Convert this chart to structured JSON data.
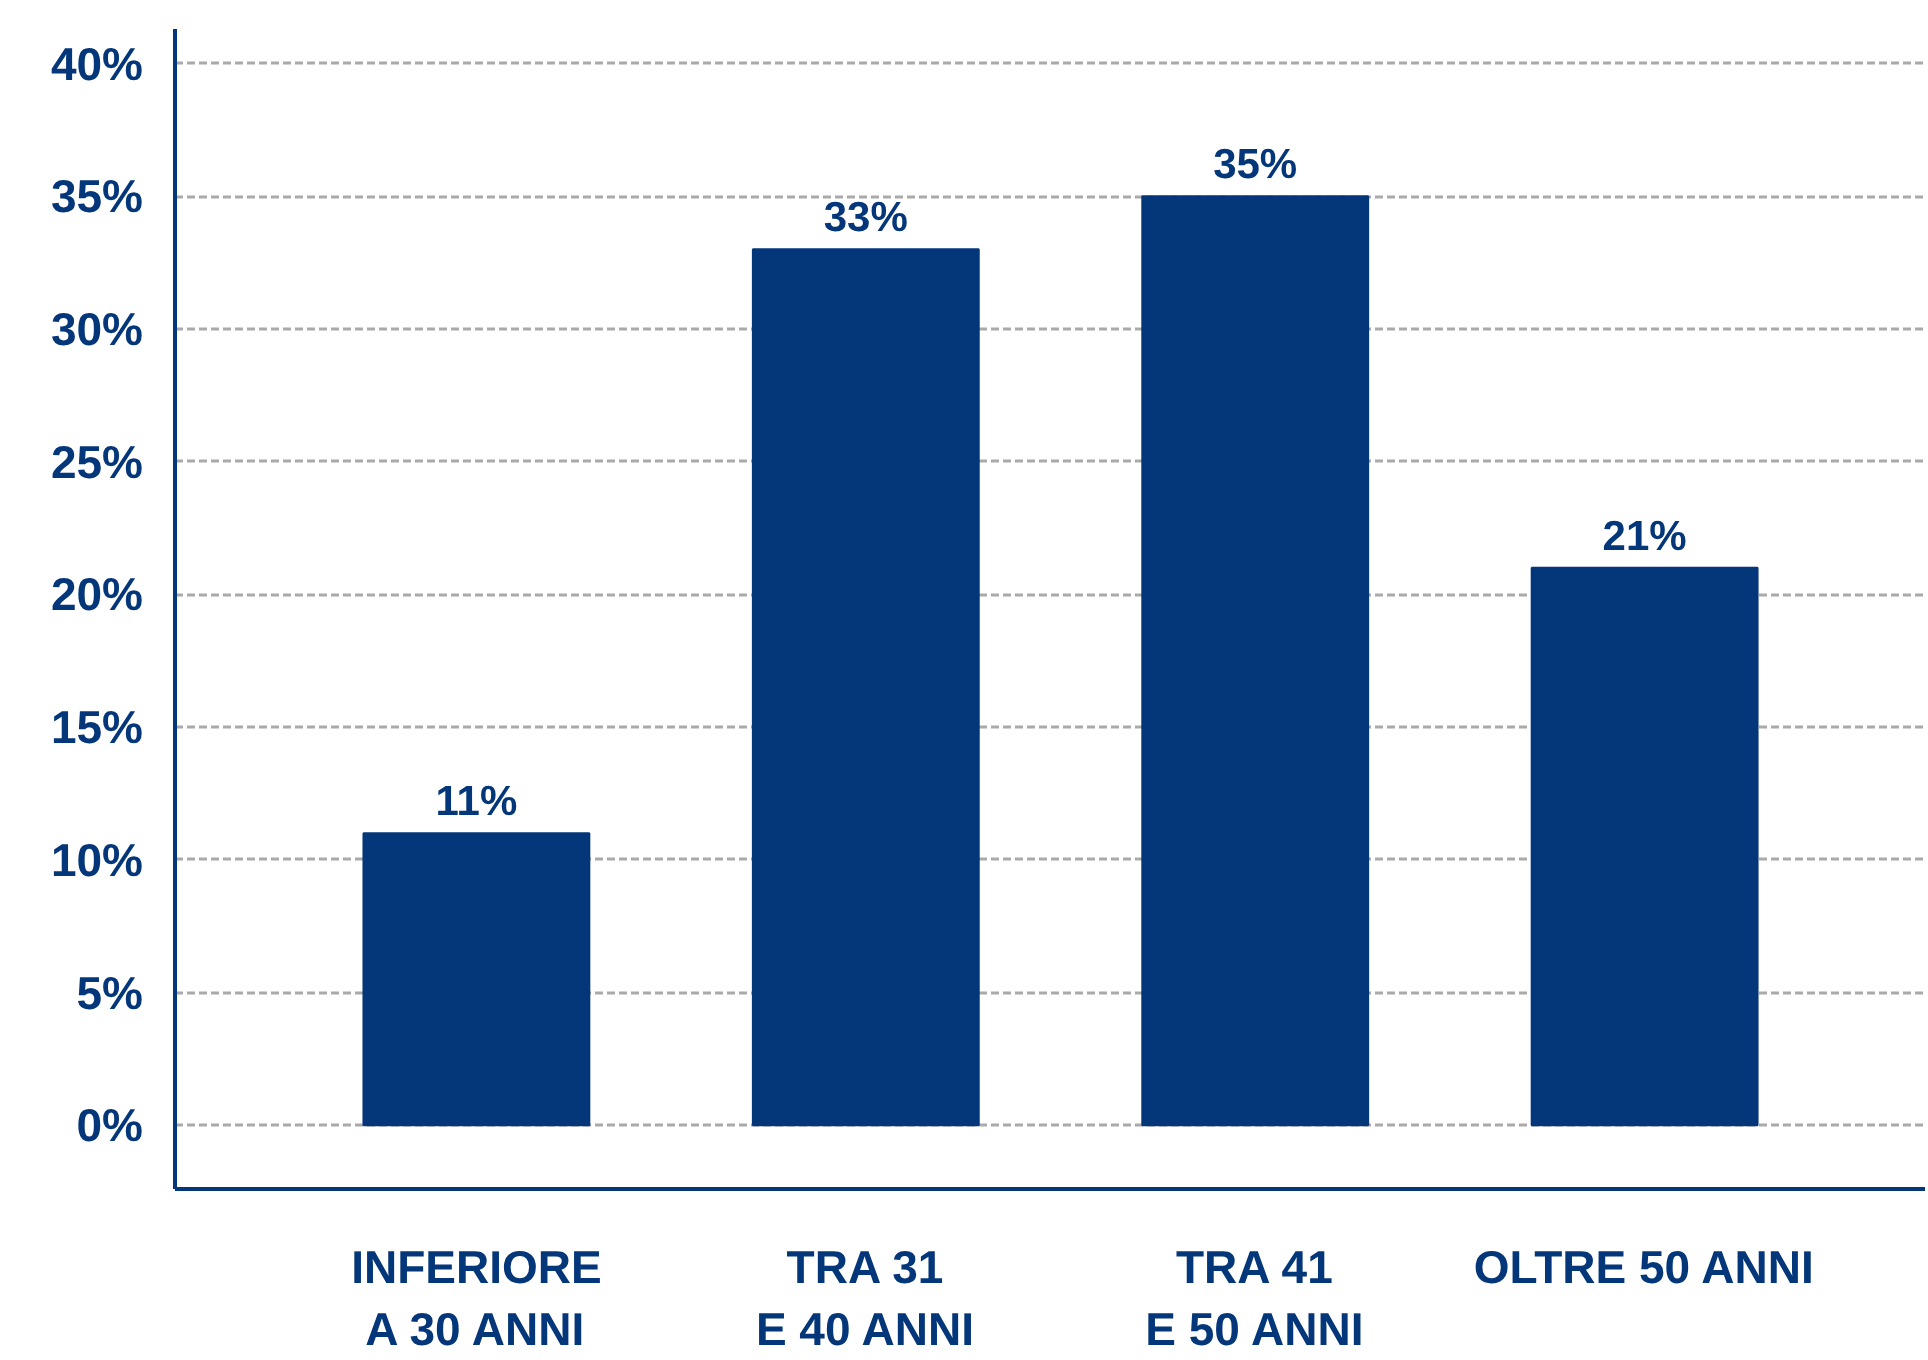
{
  "chart_data": {
    "type": "bar",
    "categories": [
      "INFERIORE\nA 30 ANNI",
      "TRA 31\nE 40 ANNI",
      "TRA 41\nE 50 ANNI",
      "OLTRE 50 ANNI"
    ],
    "values": [
      11,
      33,
      35,
      21
    ],
    "value_labels": [
      "11%",
      "33%",
      "35%",
      "21%"
    ],
    "color": "#04367a",
    "ylim": [
      -2.4,
      41.3
    ],
    "yticks": [
      {
        "value": 0,
        "label": "0%"
      },
      {
        "value": 5,
        "label": "5%"
      },
      {
        "value": 10,
        "label": "10%"
      },
      {
        "value": 15,
        "label": "15%"
      },
      {
        "value": 20,
        "label": "20%"
      },
      {
        "value": 25,
        "label": "25%"
      },
      {
        "value": 30,
        "label": "30%"
      },
      {
        "value": 35,
        "label": "35%"
      },
      {
        "value": 40,
        "label": "40%"
      }
    ],
    "grid": "y"
  }
}
